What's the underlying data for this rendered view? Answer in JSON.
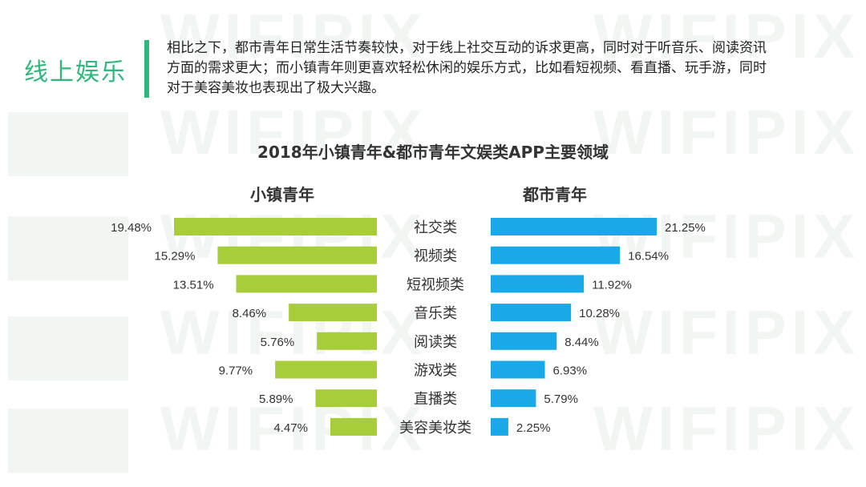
{
  "intro": {
    "section_title": "线上娱乐",
    "text": "相比之下，都市青年日常生活节奏较快，对于线上社交互动的诉求更高，同时对于听音乐、阅读资讯方面的需求更大；而小镇青年则更喜欢轻松休闲的娱乐方式，比如看短视频、看直播、玩手游，同时对于美容美妆也表现出了极大兴趣。"
  },
  "watermark": {
    "text": "WIFIPIX"
  },
  "colors": {
    "accent": "#2fb87b",
    "left_series": "#a8cd3a",
    "right_series": "#19a9e8"
  },
  "chart_data": {
    "type": "bar",
    "orientation": "horizontal-butterfly",
    "title": "2018年小镇青年&都市青年文娱类APP主要领域",
    "categories": [
      "社交类",
      "视频类",
      "短视频类",
      "音乐类",
      "阅读类",
      "游戏类",
      "直播类",
      "美容美妆类"
    ],
    "series": [
      {
        "name": "小镇青年",
        "values": [
          19.48,
          15.29,
          13.51,
          8.46,
          5.76,
          9.77,
          5.89,
          4.47
        ],
        "labels": [
          "19.48%",
          "15.29%",
          "13.51%",
          "8.46%",
          "5.76%",
          "9.77%",
          "5.89%",
          "4.47%"
        ]
      },
      {
        "name": "都市青年",
        "values": [
          21.25,
          16.54,
          11.92,
          10.28,
          8.44,
          6.93,
          5.79,
          2.25
        ],
        "labels": [
          "21.25%",
          "16.54%",
          "11.92%",
          "10.28%",
          "8.44%",
          "6.93%",
          "5.79%",
          "2.25%"
        ]
      }
    ],
    "unit": "%"
  }
}
